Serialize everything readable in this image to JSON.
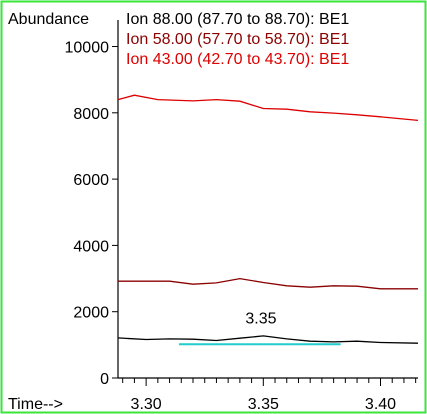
{
  "chart_data": {
    "type": "line",
    "ylabel": "Abundance",
    "xlabel": "Time-->",
    "xlim": [
      3.288,
      3.416
    ],
    "ylim": [
      0,
      10800
    ],
    "x_ticks": [
      3.3,
      3.35,
      3.4
    ],
    "x_tick_labels": [
      "3.30",
      "3.35",
      "3.40"
    ],
    "y_ticks": [
      0,
      2000,
      4000,
      6000,
      8000,
      10000
    ],
    "y_tick_labels": [
      "0",
      "2000",
      "4000",
      "6000",
      "8000",
      "10000"
    ],
    "legend_placement": "top",
    "series": [
      {
        "name": "Ion  88.00 (87.70 to 88.70): BE1",
        "color": "#000000",
        "x": [
          3.288,
          3.3,
          3.31,
          3.32,
          3.33,
          3.34,
          3.35,
          3.36,
          3.37,
          3.38,
          3.39,
          3.4,
          3.416
        ],
        "y": [
          1210,
          1160,
          1180,
          1170,
          1130,
          1200,
          1270,
          1180,
          1110,
          1090,
          1110,
          1070,
          1050
        ]
      },
      {
        "name": "Ion  58.00 (57.70 to 58.70): BE1",
        "color": "#8b0000",
        "x": [
          3.288,
          3.3,
          3.31,
          3.32,
          3.33,
          3.34,
          3.35,
          3.36,
          3.37,
          3.38,
          3.39,
          3.4,
          3.416
        ],
        "y": [
          2920,
          2920,
          2920,
          2830,
          2870,
          3000,
          2880,
          2780,
          2740,
          2780,
          2770,
          2690,
          2690
        ]
      },
      {
        "name": "Ion  43.00 (42.70 to 43.70): BE1",
        "color": "#dd0000",
        "x": [
          3.288,
          3.295,
          3.305,
          3.32,
          3.33,
          3.34,
          3.35,
          3.36,
          3.37,
          3.38,
          3.39,
          3.4,
          3.416
        ],
        "y": [
          8400,
          8530,
          8400,
          8360,
          8400,
          8350,
          8130,
          8110,
          8030,
          7990,
          7940,
          7880,
          7770
        ]
      }
    ],
    "annotations": [
      {
        "text": "3.35",
        "x": 3.349,
        "y": 1650
      }
    ],
    "integration_baseline": {
      "color": "#22cccc",
      "x": [
        3.314,
        3.383
      ],
      "y": [
        1020,
        1020
      ]
    }
  }
}
